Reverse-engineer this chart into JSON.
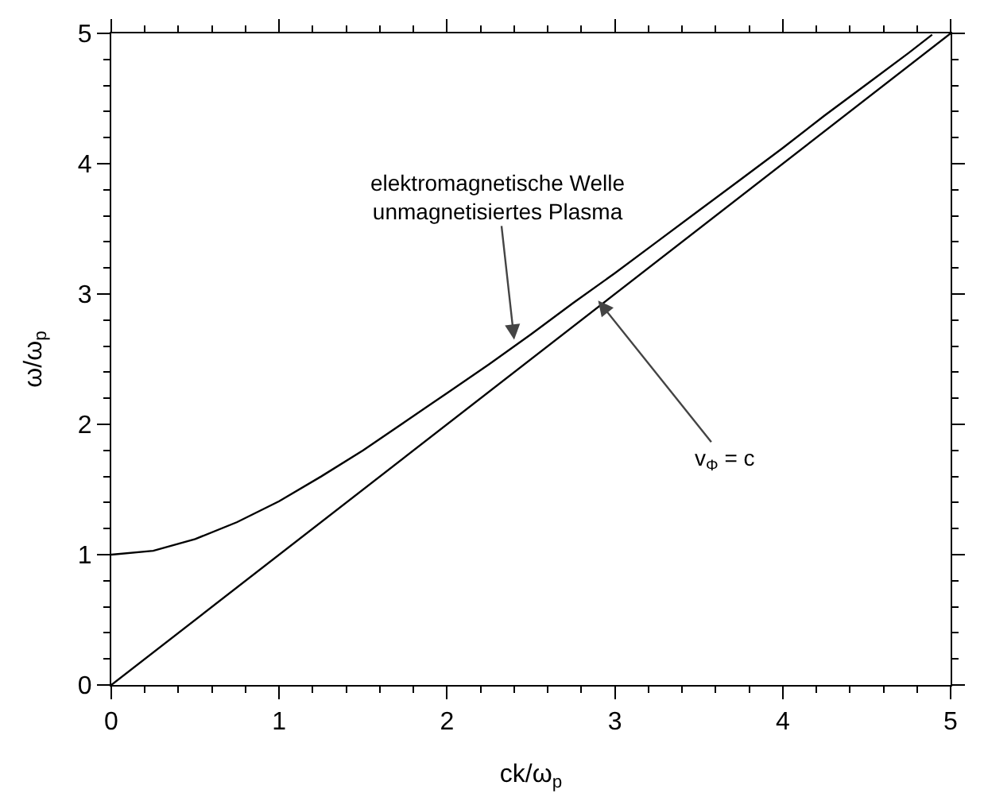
{
  "chart_data": {
    "type": "line",
    "xlabel": "ck/ω$_{p}$",
    "ylabel": "ω/ω$_{p}$",
    "xlim": [
      0,
      5
    ],
    "ylim": [
      0,
      5
    ],
    "xticks": [
      0,
      1,
      2,
      3,
      4,
      5
    ],
    "yticks": [
      0,
      1,
      2,
      3,
      4,
      5
    ],
    "grid": false,
    "marker": "none",
    "line_style": "solid",
    "series": [
      {
        "color": "#000000",
        "x": [
          0,
          0.25,
          0.5,
          0.75,
          1,
          1.25,
          1.5,
          1.75,
          2,
          2.25,
          2.5,
          2.75,
          3,
          3.25,
          3.5,
          3.75,
          4,
          4.25,
          4.5,
          4.75,
          4.89
        ],
        "values": [
          1,
          1.03,
          1.12,
          1.25,
          1.41,
          1.6,
          1.8,
          2.02,
          2.24,
          2.46,
          2.69,
          2.93,
          3.16,
          3.4,
          3.64,
          3.88,
          4.12,
          4.37,
          4.61,
          4.85,
          4.99
        ]
      },
      {
        "color": "#000000",
        "x": [
          0,
          5
        ],
        "values": [
          0,
          5
        ]
      }
    ],
    "annotations": [
      {
        "text": "elektromagnetische Welle\nunmagnetisiertes Plasma",
        "x": 2.4,
        "y": 2.65
      },
      {
        "text": "v$_{Φ}$ = c",
        "x": 2.9,
        "y": 2.95
      }
    ]
  }
}
